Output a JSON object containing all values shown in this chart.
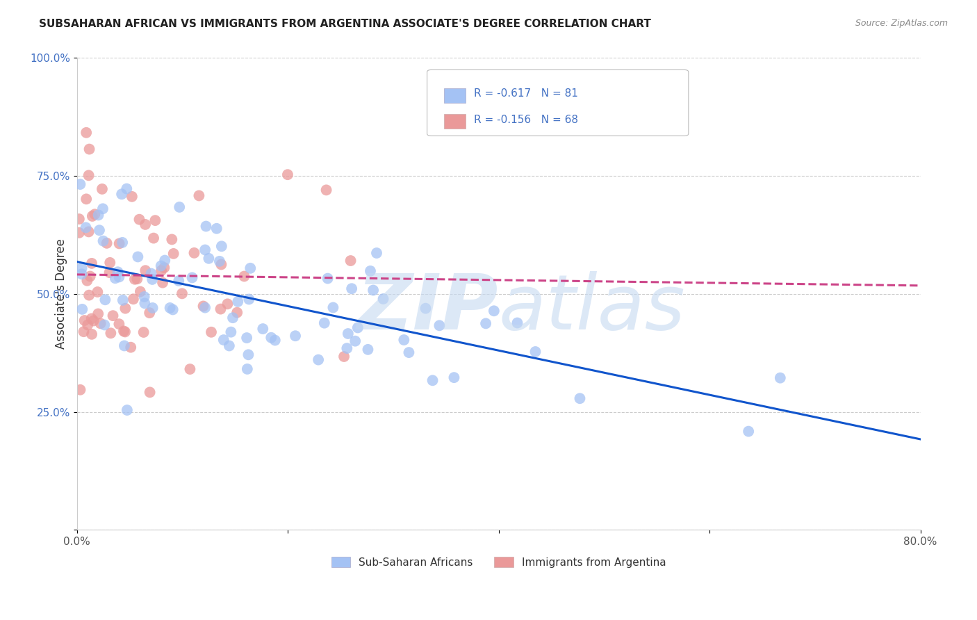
{
  "title": "SUBSAHARAN AFRICAN VS IMMIGRANTS FROM ARGENTINA ASSOCIATE'S DEGREE CORRELATION CHART",
  "source": "Source: ZipAtlas.com",
  "ylabel": "Associate's Degree",
  "xmin": 0.0,
  "xmax": 80.0,
  "ymin": 0.0,
  "ymax": 100.0,
  "blue_color": "#a4c2f4",
  "pink_color": "#ea9999",
  "blue_line_color": "#1155cc",
  "pink_line_color": "#cc4488",
  "watermark_zip": "ZIP",
  "watermark_atlas": "atlas",
  "legend_r1": "-0.617",
  "legend_n1": "81",
  "legend_r2": "-0.156",
  "legend_n2": "68",
  "blue_scatter_seed": 789,
  "pink_scatter_seed": 456,
  "blue_x_scale": 18,
  "blue_y_center": 48,
  "blue_y_std": 10,
  "pink_x_scale": 7,
  "pink_y_center": 52,
  "pink_y_std": 12
}
